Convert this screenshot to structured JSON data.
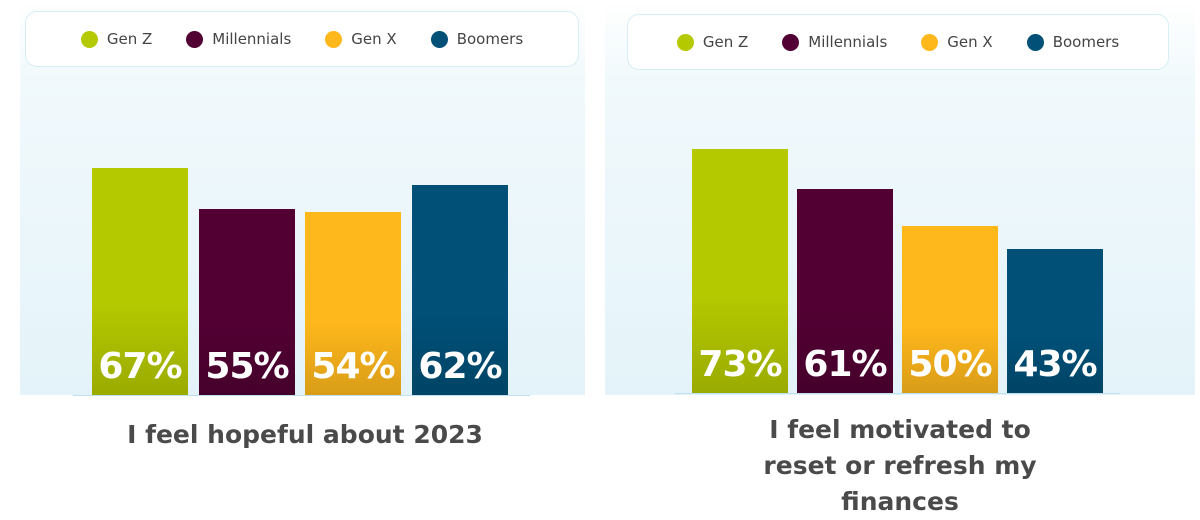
{
  "chart_data": [
    {
      "type": "bar",
      "title": "I feel hopeful about 2023",
      "categories": [
        "Gen Z",
        "Millennials",
        "Gen X",
        "Boomers"
      ],
      "values": [
        67,
        55,
        54,
        62
      ],
      "labels": [
        "67%",
        "55%",
        "54%",
        "62%"
      ],
      "legend_position": "top",
      "xlabel": "",
      "ylabel": ""
    },
    {
      "type": "bar",
      "title": "I feel motivated to reset or refresh my finances",
      "categories": [
        "Gen Z",
        "Millennials",
        "Gen X",
        "Boomers"
      ],
      "values": [
        73,
        61,
        50,
        43
      ],
      "labels": [
        "73%",
        "61%",
        "50%",
        "43%"
      ],
      "legend_position": "top",
      "xlabel": "",
      "ylabel": ""
    }
  ],
  "colors": [
    "#b5c900",
    "#520033",
    "#ffb81c",
    "#005078"
  ]
}
